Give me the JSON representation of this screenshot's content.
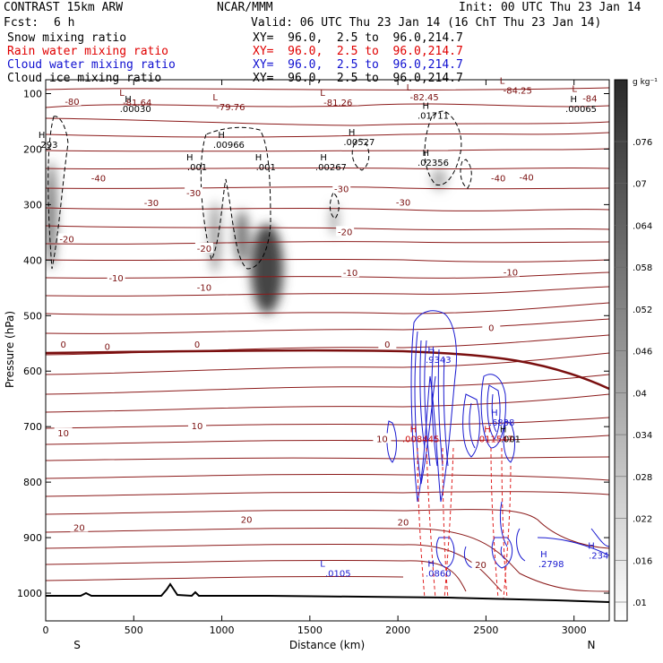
{
  "header": {
    "model": "CONTRAST 15km ARW",
    "center": "NCAR/MMM",
    "init": "Init: 00 UTC Thu 23 Jan 14",
    "fcst_label": "Fcst:",
    "fcst_value": "6 h",
    "valid": "Valid: 06 UTC Thu 23 Jan 14 (16 ChT Thu 23 Jan 14)",
    "fields": [
      {
        "name": "Snow mixing ratio",
        "xy": "XY=  96.0,  2.5 to  96.0,214.7",
        "color": "#000000"
      },
      {
        "name": "Rain water mixing ratio",
        "xy": "XY=  96.0,  2.5 to  96.0,214.7",
        "color": "#e00000"
      },
      {
        "name": "Cloud water mixing ratio",
        "xy": "XY=  96.0,  2.5 to  96.0,214.7",
        "color": "#1010d0"
      },
      {
        "name": "Cloud ice mixing ratio",
        "xy": "XY=  96.0,  2.5 to  96.0,214.7",
        "color": "#000000"
      }
    ]
  },
  "colorbar": {
    "unit": "g kg⁻¹",
    "ticks": [
      ".01",
      ".016",
      ".022",
      ".028",
      ".034",
      ".04",
      ".046",
      ".052",
      ".058",
      ".064",
      ".07",
      ".076"
    ]
  },
  "chart_data": {
    "type": "contour cross-section",
    "xlabel": "Distance (km)",
    "ylabel": "Pressure (hPa)",
    "xlim": [
      0,
      3200
    ],
    "ylim": [
      1050,
      75
    ],
    "x_ticks": [
      0,
      500,
      1000,
      1500,
      2000,
      2500,
      3000
    ],
    "y_ticks": [
      100,
      200,
      300,
      400,
      500,
      600,
      700,
      800,
      900,
      1000
    ],
    "x_end_labels": {
      "left": "S",
      "right": "N"
    },
    "temperature_contours": [
      {
        "label": "-80",
        "x": 150,
        "p": 115
      },
      {
        "label": "-40",
        "x": 300,
        "p": 253
      },
      {
        "label": "-30",
        "x": 600,
        "p": 298
      },
      {
        "label": "-30",
        "x": 840,
        "p": 280
      },
      {
        "label": "-30",
        "x": 1680,
        "p": 273
      },
      {
        "label": "-30",
        "x": 2030,
        "p": 297
      },
      {
        "label": "-40",
        "x": 2570,
        "p": 253
      },
      {
        "label": "-40",
        "x": 2730,
        "p": 252
      },
      {
        "label": "-20",
        "x": 120,
        "p": 363
      },
      {
        "label": "-20",
        "x": 900,
        "p": 380
      },
      {
        "label": "-20",
        "x": 1700,
        "p": 350
      },
      {
        "label": "-10",
        "x": 400,
        "p": 433
      },
      {
        "label": "-10",
        "x": 900,
        "p": 450
      },
      {
        "label": "-10",
        "x": 1730,
        "p": 424
      },
      {
        "label": "-10",
        "x": 2640,
        "p": 423
      },
      {
        "label": "0",
        "x": 100,
        "p": 553
      },
      {
        "label": "0",
        "x": 350,
        "p": 557
      },
      {
        "label": "0",
        "x": 860,
        "p": 553
      },
      {
        "label": "0",
        "x": 1940,
        "p": 553
      },
      {
        "label": "0",
        "x": 2530,
        "p": 523
      },
      {
        "label": "10",
        "x": 100,
        "p": 713
      },
      {
        "label": "10",
        "x": 860,
        "p": 700
      },
      {
        "label": "10",
        "x": 1910,
        "p": 723
      },
      {
        "label": "20",
        "x": 190,
        "p": 883
      },
      {
        "label": "20",
        "x": 1140,
        "p": 868
      },
      {
        "label": "20",
        "x": 2030,
        "p": 873
      },
      {
        "label": "20",
        "x": 2470,
        "p": 950
      }
    ],
    "low_labels": [
      {
        "value": "-81.64",
        "x": 520,
        "p": 117
      },
      {
        "value": "-79.76",
        "x": 1050,
        "p": 125
      },
      {
        "value": "-81.26",
        "x": 1660,
        "p": 117
      },
      {
        "value": "-82.45",
        "x": 2150,
        "p": 107
      },
      {
        "value": "-84.25",
        "x": 2680,
        "p": 95
      },
      {
        "value": "-84",
        "x": 3090,
        "p": 110
      },
      {
        "value": ".0105",
        "x": 1660,
        "p": 965
      }
    ],
    "high_labels": [
      {
        "value": ".00030",
        "x": 510,
        "p": 128
      },
      {
        "value": ".00966",
        "x": 1040,
        "p": 193
      },
      {
        "value": ".00527",
        "x": 1780,
        "p": 188
      },
      {
        "value": ".00267",
        "x": 1620,
        "p": 233
      },
      {
        "value": ".01711",
        "x": 2200,
        "p": 140
      },
      {
        "value": ".02356",
        "x": 2200,
        "p": 225
      },
      {
        "value": ".00065",
        "x": 3040,
        "p": 128
      },
      {
        "value": "293",
        "x": 20,
        "p": 193
      },
      {
        "value": ".001",
        "x": 860,
        "p": 233
      },
      {
        "value": ".001",
        "x": 1250,
        "p": 233
      },
      {
        "value": ".9343",
        "x": 2230,
        "p": 580
      },
      {
        "value": ".6838",
        "x": 2590,
        "p": 693
      },
      {
        "value": ".011547",
        "x": 2550,
        "p": 723
      },
      {
        "value": ".001",
        "x": 2640,
        "p": 723
      },
      {
        "value": ".008445",
        "x": 2130,
        "p": 723
      },
      {
        "value": ".0860",
        "x": 2230,
        "p": 965
      },
      {
        "value": ".2798",
        "x": 2870,
        "p": 948
      },
      {
        "value": ".234",
        "x": 3140,
        "p": 933
      }
    ]
  }
}
